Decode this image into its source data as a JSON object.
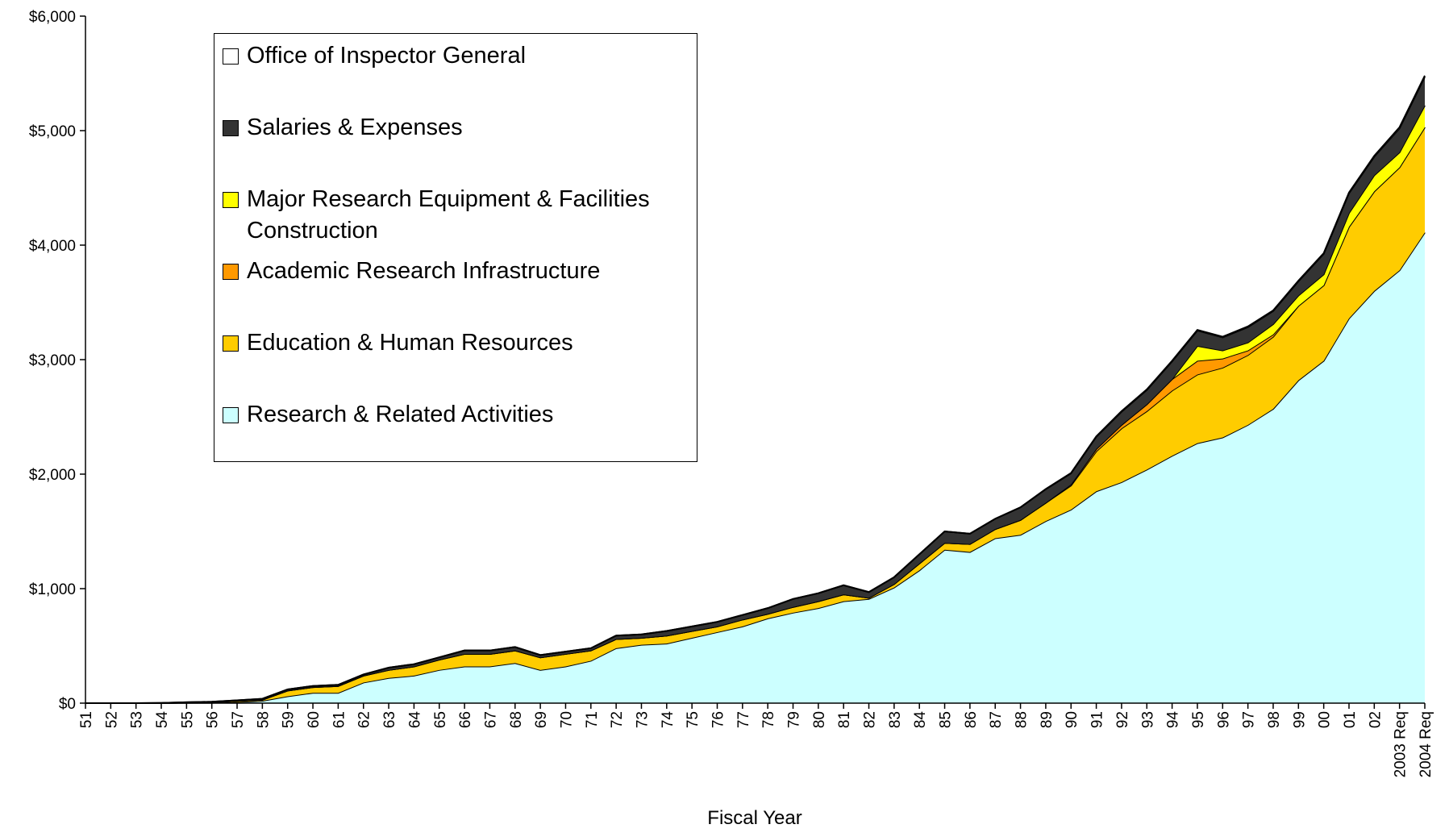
{
  "chart_data": {
    "type": "stacked-area",
    "x_label": "Fiscal Year",
    "categories": [
      "51",
      "52",
      "53",
      "54",
      "55",
      "56",
      "57",
      "58",
      "59",
      "60",
      "61",
      "62",
      "63",
      "64",
      "65",
      "66",
      "67",
      "68",
      "69",
      "70",
      "71",
      "72",
      "73",
      "74",
      "75",
      "76",
      "77",
      "78",
      "79",
      "80",
      "81",
      "82",
      "83",
      "84",
      "85",
      "86",
      "87",
      "88",
      "89",
      "90",
      "91",
      "92",
      "93",
      "94",
      "95",
      "96",
      "97",
      "98",
      "99",
      "00",
      "01",
      "02",
      "2003 Req",
      "2004 Req"
    ],
    "series": [
      {
        "name": "Research & Related Activities",
        "color": "#ccffff",
        "values": [
          0,
          0,
          0,
          0,
          2,
          3,
          10,
          20,
          60,
          90,
          90,
          180,
          220,
          240,
          290,
          320,
          320,
          350,
          290,
          320,
          370,
          480,
          510,
          520,
          570,
          620,
          670,
          740,
          790,
          830,
          890,
          910,
          1010,
          1160,
          1340,
          1320,
          1440,
          1470,
          1590,
          1690,
          1850,
          1930,
          2040,
          2160,
          2270,
          2320,
          2430,
          2570,
          2820,
          2990,
          3360,
          3600,
          3780,
          4110
        ]
      },
      {
        "name": "Education & Human Resources",
        "color": "#ffcc00",
        "values": [
          0,
          0,
          0,
          0,
          3,
          5,
          10,
          10,
          50,
          50,
          60,
          60,
          70,
          80,
          90,
          110,
          110,
          110,
          110,
          110,
          90,
          80,
          60,
          70,
          60,
          50,
          60,
          40,
          50,
          60,
          60,
          10,
          30,
          60,
          60,
          70,
          80,
          130,
          160,
          210,
          350,
          470,
          510,
          570,
          600,
          610,
          610,
          630,
          650,
          660,
          800,
          870,
          900,
          920
        ]
      },
      {
        "name": "Academic Research Infrastructure",
        "color": "#ff9900",
        "values": [
          0,
          0,
          0,
          0,
          0,
          0,
          0,
          0,
          0,
          0,
          0,
          0,
          0,
          0,
          0,
          0,
          0,
          0,
          0,
          0,
          0,
          0,
          0,
          0,
          0,
          0,
          0,
          0,
          0,
          0,
          0,
          0,
          0,
          0,
          0,
          0,
          0,
          0,
          0,
          10,
          20,
          30,
          60,
          100,
          120,
          80,
          40,
          20,
          0,
          0,
          0,
          0,
          0,
          0
        ]
      },
      {
        "name": "Major Research Equipment & Facilities Construction",
        "color": "#ffff00",
        "values": [
          0,
          0,
          0,
          0,
          0,
          0,
          0,
          0,
          0,
          0,
          0,
          0,
          0,
          0,
          0,
          0,
          0,
          0,
          0,
          0,
          0,
          0,
          0,
          0,
          0,
          0,
          0,
          0,
          0,
          0,
          0,
          0,
          0,
          0,
          0,
          0,
          0,
          0,
          0,
          0,
          0,
          0,
          0,
          0,
          130,
          70,
          70,
          90,
          90,
          95,
          120,
          140,
          130,
          190
        ]
      },
      {
        "name": "Salaries & Expenses",
        "color": "#333333",
        "values": [
          0,
          0,
          0,
          2,
          3,
          4,
          5,
          8,
          10,
          10,
          10,
          10,
          20,
          20,
          20,
          30,
          30,
          30,
          20,
          20,
          20,
          30,
          30,
          40,
          40,
          40,
          40,
          50,
          70,
          70,
          80,
          50,
          60,
          80,
          100,
          90,
          90,
          110,
          118,
          97,
          106,
          115,
          125,
          154,
          134,
          114,
          134,
          114,
          124,
          179,
          173,
          162,
          210,
          250
        ]
      },
      {
        "name": "Office of Inspector General",
        "color": "#ffffff",
        "values": [
          0,
          0,
          0,
          0,
          0,
          0,
          0,
          0,
          0,
          0,
          0,
          0,
          0,
          0,
          0,
          0,
          0,
          0,
          0,
          0,
          0,
          0,
          0,
          0,
          0,
          0,
          0,
          0,
          0,
          0,
          0,
          0,
          0,
          0,
          0,
          0,
          0,
          0,
          2,
          3,
          4,
          5,
          5,
          6,
          6,
          6,
          6,
          6,
          6,
          6,
          7,
          8,
          10,
          10
        ]
      }
    ],
    "ylim": [
      0,
      6000
    ],
    "yticks": [
      {
        "value": 0,
        "label": "$0"
      },
      {
        "value": 1000,
        "label": "$1,000"
      },
      {
        "value": 2000,
        "label": "$2,000"
      },
      {
        "value": 3000,
        "label": "$3,000"
      },
      {
        "value": 4000,
        "label": "$4,000"
      },
      {
        "value": 5000,
        "label": "$5,000"
      },
      {
        "value": 6000,
        "label": "$6,000"
      }
    ],
    "legend": "upper-left"
  }
}
